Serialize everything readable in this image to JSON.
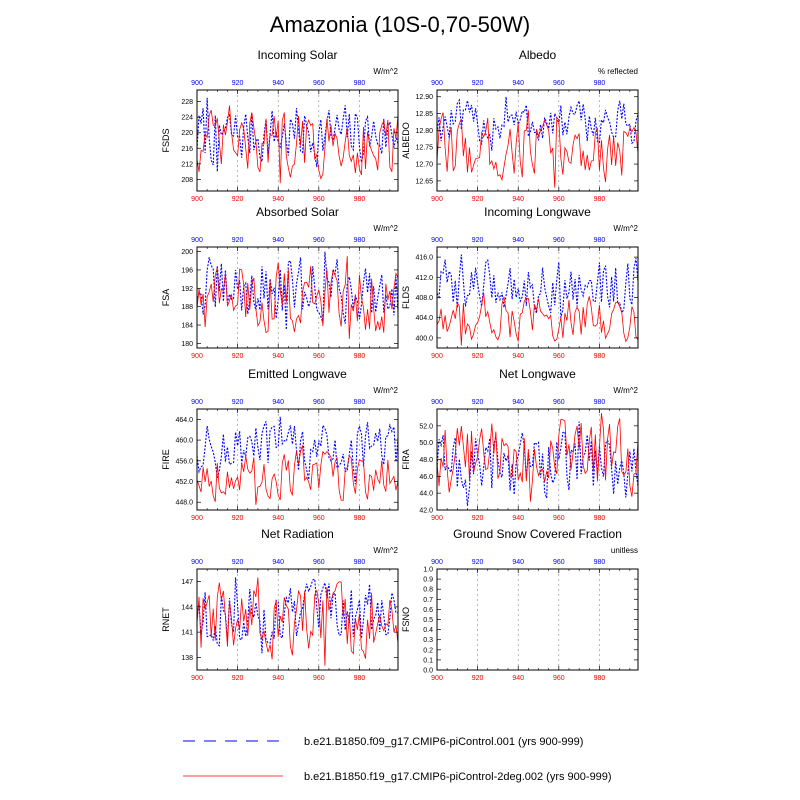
{
  "page": {
    "title": "Amazonia (10S-0,70-50W)"
  },
  "colors": {
    "series1": "#0000ff",
    "series2": "#ff0000",
    "grid": "#888888"
  },
  "legend": [
    {
      "name": "b.e21.B1850.f09_g17.CMIP6-piControl.001 (yrs 900-999)",
      "color": "#0000ff",
      "style": "dashed"
    },
    {
      "name": "b.e21.B1850.f19_g17.CMIP6-piControl-2deg.002 (yrs 900-999)",
      "color": "#ff0000",
      "style": "solid"
    }
  ],
  "chart_data": [
    {
      "type": "line",
      "title": "Incoming Solar",
      "ylabel": "FSDS",
      "units": "W/m^2",
      "xlim": [
        900,
        999
      ],
      "xticks": [
        900,
        920,
        940,
        960,
        980
      ],
      "ylim": [
        205,
        231
      ],
      "yticks": [
        "208",
        "212",
        "216",
        "220",
        "224",
        "228"
      ],
      "series_ranges": [
        [
          210,
          229
        ],
        [
          207,
          227
        ]
      ]
    },
    {
      "type": "line",
      "title": "Albedo",
      "ylabel": "ALBEDO",
      "units": "% reflected",
      "xlim": [
        900,
        999
      ],
      "xticks": [
        900,
        920,
        940,
        960,
        980
      ],
      "ylim": [
        12.62,
        12.92
      ],
      "yticks": [
        "12.65",
        "12.70",
        "12.75",
        "12.80",
        "12.85",
        "12.90"
      ],
      "series_ranges": [
        [
          12.74,
          12.9
        ],
        [
          12.63,
          12.86
        ]
      ]
    },
    {
      "type": "line",
      "title": "Absorbed Solar",
      "ylabel": "FSA",
      "units": "W/m^2",
      "xlim": [
        900,
        999
      ],
      "xticks": [
        900,
        920,
        940,
        960,
        980
      ],
      "ylim": [
        179,
        201
      ],
      "yticks": [
        "180",
        "184",
        "188",
        "192",
        "196",
        "200"
      ],
      "series_ranges": [
        [
          183,
          200
        ],
        [
          181,
          199
        ]
      ]
    },
    {
      "type": "line",
      "title": "Incoming Longwave",
      "ylabel": "FLDS",
      "units": "W/m^2",
      "xlim": [
        900,
        999
      ],
      "xticks": [
        900,
        920,
        940,
        960,
        980
      ],
      "ylim": [
        398,
        418
      ],
      "yticks": [
        "400.0",
        "404.0",
        "408.0",
        "412.0",
        "416.0"
      ],
      "series_ranges": [
        [
          404,
          416.5
        ],
        [
          398.5,
          409
        ]
      ]
    },
    {
      "type": "line",
      "title": "Emitted Longwave",
      "ylabel": "FIRE",
      "units": "W/m^2",
      "xlim": [
        900,
        999
      ],
      "xticks": [
        900,
        920,
        940,
        960,
        980
      ],
      "ylim": [
        446.5,
        466
      ],
      "yticks": [
        "448.0",
        "452.0",
        "456.0",
        "460.0",
        "464.0"
      ],
      "series_ranges": [
        [
          451.5,
          464.5
        ],
        [
          447.5,
          459
        ]
      ]
    },
    {
      "type": "line",
      "title": "Net Longwave",
      "ylabel": "FIRA",
      "units": "W/m^2",
      "xlim": [
        900,
        999
      ],
      "xticks": [
        900,
        920,
        940,
        960,
        980
      ],
      "ylim": [
        42,
        54
      ],
      "yticks": [
        "42.0",
        "44.0",
        "46.0",
        "48.0",
        "50.0",
        "52.0"
      ],
      "series_ranges": [
        [
          42.5,
          52.5
        ],
        [
          43,
          53.5
        ]
      ]
    },
    {
      "type": "line",
      "title": "Net Radiation",
      "ylabel": "RNET",
      "units": "W/m^2",
      "xlim": [
        900,
        999
      ],
      "xticks": [
        900,
        920,
        940,
        960,
        980
      ],
      "ylim": [
        136.5,
        148.5
      ],
      "yticks": [
        "138",
        "141",
        "144",
        "147"
      ],
      "series_ranges": [
        [
          138.5,
          147.5
        ],
        [
          137,
          147.5
        ]
      ]
    },
    {
      "type": "line",
      "title": "Ground Snow Covered Fraction",
      "ylabel": "FSNO",
      "units": "unitless",
      "xlim": [
        900,
        999
      ],
      "xticks": [
        900,
        920,
        940,
        960,
        980
      ],
      "ylim": [
        0,
        1
      ],
      "yticks": [
        "0.0",
        "0.1",
        "0.2",
        "0.3",
        "0.4",
        "0.5",
        "0.6",
        "0.7",
        "0.8",
        "0.9",
        "1.0"
      ],
      "series_ranges": []
    }
  ]
}
